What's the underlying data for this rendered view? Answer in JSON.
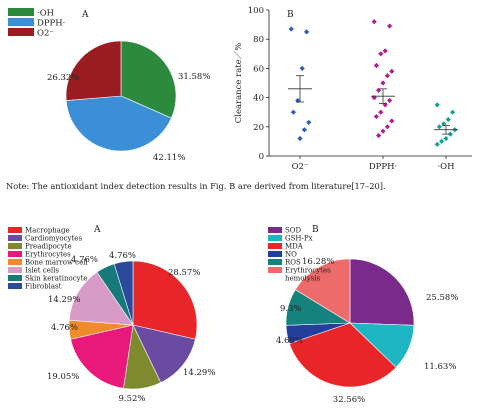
{
  "note": "Note: The antioxidant index detection results in Fig. B are derived from literature[17–20].",
  "chart_data": [
    {
      "type": "pie",
      "panel": "A",
      "categories": [
        "·OH",
        "DPPH·",
        "O2⁻"
      ],
      "values": [
        31.58,
        42.11,
        26.32
      ],
      "labels": [
        "31.58%",
        "42.11%",
        "26.32%"
      ],
      "colors": [
        "#2b8a3e",
        "#3b8fd6",
        "#9b1c20"
      ],
      "legend_position": "top-left"
    },
    {
      "type": "scatter",
      "panel": "B",
      "ylabel": "Clearance rate／%",
      "ylim": [
        0,
        100
      ],
      "yticks": [
        0,
        20,
        40,
        60,
        80,
        100
      ],
      "categories": [
        "O2⁻",
        "DPPH·",
        "·OH"
      ],
      "colors": [
        "#2a5fb5",
        "#b01e8f",
        "#17a39b"
      ],
      "means": [
        46,
        41,
        18
      ],
      "sem": [
        9,
        5,
        3
      ],
      "points": [
        [
          87,
          85,
          60,
          38,
          30,
          23,
          18,
          12
        ],
        [
          92,
          89,
          72,
          70,
          62,
          58,
          55,
          50,
          45,
          40,
          38,
          35,
          30,
          27,
          24,
          20,
          17,
          14
        ],
        [
          35,
          30,
          25,
          22,
          20,
          18,
          15,
          12,
          10,
          8
        ]
      ]
    },
    {
      "type": "pie",
      "panel": "A",
      "categories": [
        "Macrophage",
        "Cardiomyocytes",
        "Preadipocyte",
        "Erythrocytes",
        "Bone marrow cell",
        "Islet cells",
        "Skin keratinocyte",
        "Fibroblast"
      ],
      "values": [
        28.57,
        14.29,
        9.52,
        19.05,
        4.76,
        14.29,
        4.76,
        4.76
      ],
      "labels": [
        "28.57%",
        "14.29%",
        "9.52%",
        "19.05%",
        "4.76%",
        "14.29%",
        "4.76%",
        "4.76%"
      ],
      "colors": [
        "#e8262a",
        "#6b4aa2",
        "#7d8a2e",
        "#e8197a",
        "#f18a2a",
        "#d89ac6",
        "#167a7a",
        "#2a4b9b"
      ],
      "legend_position": "top-left"
    },
    {
      "type": "pie",
      "panel": "B",
      "categories": [
        "SOD",
        "GSH-Px",
        "MDA",
        "NO",
        "ROS",
        "Erythrocytes hemolysis"
      ],
      "legend_lines": [
        "SOD",
        "GSH-Px",
        "MDA",
        "NO",
        "ROS",
        "Erythrocytes",
        "hemolysis"
      ],
      "values": [
        25.58,
        11.63,
        32.56,
        4.65,
        9.3,
        16.28
      ],
      "labels": [
        "25.58%",
        "11.63%",
        "32.56%",
        "4.65%",
        "9.3%",
        "16.28%"
      ],
      "colors": [
        "#7a2a8a",
        "#1fb6c4",
        "#e8262a",
        "#243f9b",
        "#16827d",
        "#ee6b6b"
      ],
      "legend_position": "top-left"
    }
  ]
}
